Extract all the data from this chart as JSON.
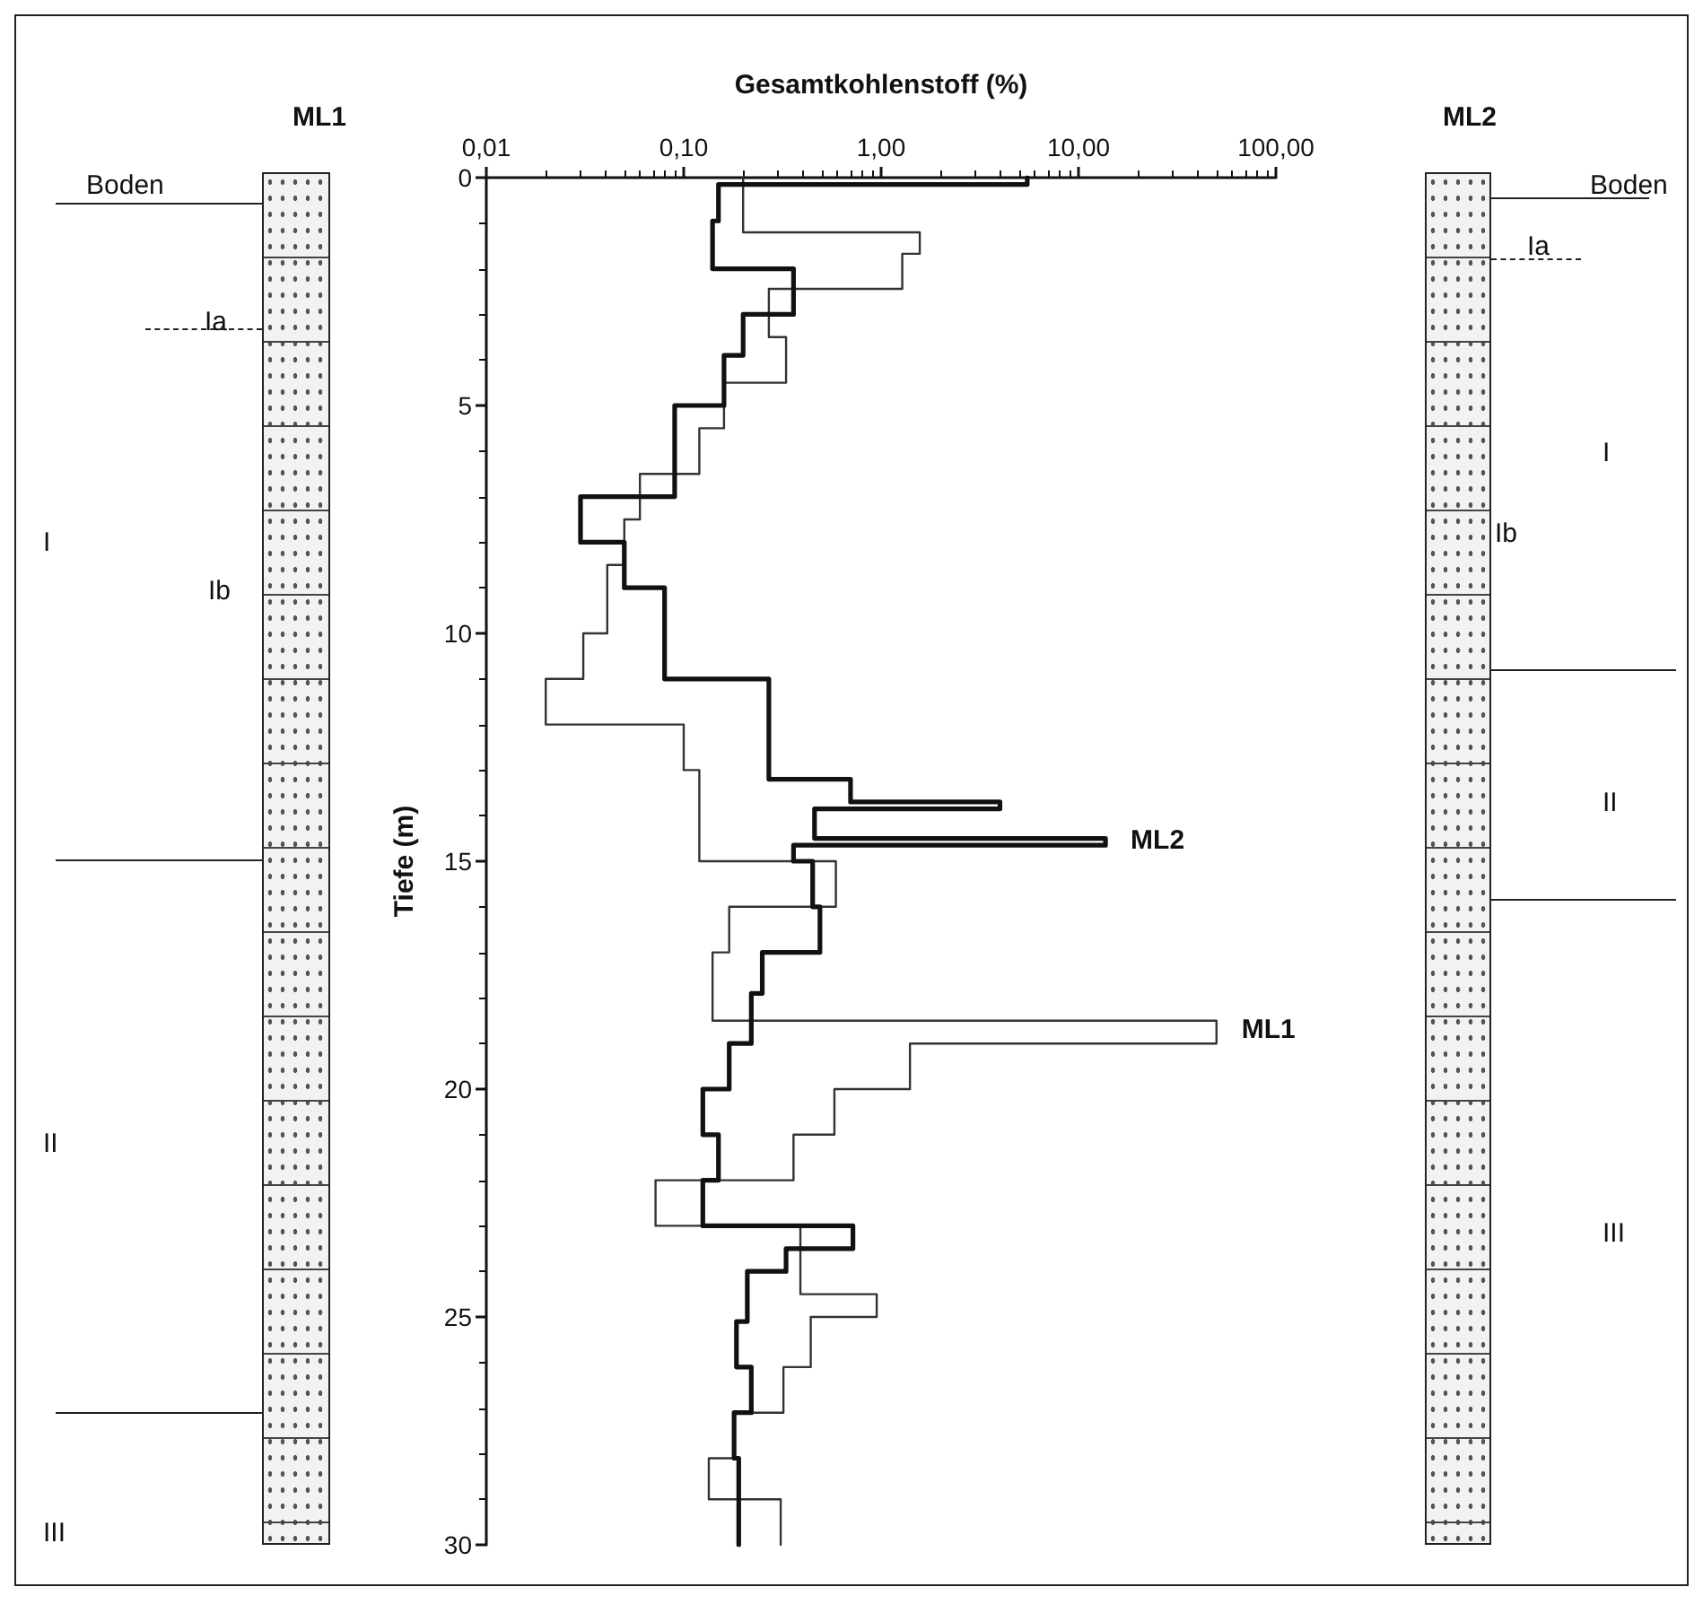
{
  "chart_data": {
    "type": "line",
    "xlabel": "Gesamtkohlenstoff (%)",
    "ylabel": "Tiefe (m)",
    "log": "x",
    "xlim": [
      0.01,
      100
    ],
    "xticks": [
      {
        "value": 0.01,
        "label": "0,01"
      },
      {
        "value": 0.1,
        "label": "0,10"
      },
      {
        "value": 1,
        "label": "1,00"
      },
      {
        "value": 10,
        "label": "10,00"
      },
      {
        "value": 100,
        "label": "100,00"
      }
    ],
    "ylim": [
      30,
      0
    ],
    "yticks": [
      0,
      5,
      10,
      15,
      20,
      25,
      30
    ],
    "grid": false,
    "marker": "none",
    "line_style": "solid",
    "series": [
      {
        "color": "#111111",
        "x": [
          5.5,
          5.5,
          0.15,
          0.15,
          0.14,
          0.14,
          0.36,
          0.36,
          0.2,
          0.2,
          0.16,
          0.16,
          0.09,
          0.09,
          0.03,
          0.03,
          0.05,
          0.05,
          0.08,
          0.08,
          0.27,
          0.27,
          0.7,
          0.7,
          4.0,
          4.0,
          0.46,
          0.46,
          13.7,
          13.7,
          0.36,
          0.36,
          0.45,
          0.45,
          0.49,
          0.49,
          0.25,
          0.25,
          0.22,
          0.22,
          0.17,
          0.17,
          0.125,
          0.125,
          0.15,
          0.15,
          0.125,
          0.125,
          0.72,
          0.72,
          0.33,
          0.33,
          0.21,
          0.21,
          0.185,
          0.185,
          0.22,
          0.22,
          0.18,
          0.18,
          0.19,
          0.19
        ],
        "values": [
          0,
          0.15,
          0.15,
          0.95,
          0.95,
          2.0,
          2.0,
          3.0,
          3.0,
          3.9,
          3.9,
          5.0,
          5.0,
          7.0,
          7.0,
          8.0,
          8.0,
          9.0,
          9.0,
          11.0,
          11.0,
          13.2,
          13.2,
          13.7,
          13.7,
          13.85,
          13.85,
          14.5,
          14.5,
          14.65,
          14.65,
          15.0,
          15.0,
          16.0,
          16.0,
          17.0,
          17.0,
          17.9,
          17.9,
          19.0,
          19.0,
          20.0,
          20.0,
          21.0,
          21.0,
          22.0,
          22.0,
          23.0,
          23.0,
          23.5,
          23.5,
          24.0,
          24.0,
          25.1,
          25.1,
          26.1,
          26.1,
          27.1,
          27.1,
          28.1,
          28.1,
          30
        ]
      },
      {
        "color": "#333333",
        "x": [
          0.2,
          0.2,
          1.57,
          1.57,
          1.28,
          1.28,
          0.27,
          0.27,
          0.33,
          0.33,
          0.16,
          0.16,
          0.12,
          0.12,
          0.06,
          0.06,
          0.05,
          0.05,
          0.041,
          0.041,
          0.031,
          0.031,
          0.02,
          0.02,
          0.1,
          0.1,
          0.12,
          0.12,
          0.59,
          0.59,
          0.17,
          0.17,
          0.14,
          0.14,
          50,
          50,
          1.4,
          1.4,
          0.58,
          0.58,
          0.36,
          0.36,
          0.072,
          0.072,
          0.39,
          0.39,
          0.95,
          0.95,
          0.44,
          0.44,
          0.32,
          0.32,
          0.18,
          0.18,
          0.134,
          0.134,
          0.31,
          0.31
        ],
        "values": [
          0,
          1.2,
          1.2,
          1.67,
          1.67,
          2.44,
          2.44,
          3.5,
          3.5,
          4.5,
          4.5,
          5.5,
          5.5,
          6.5,
          6.5,
          7.5,
          7.5,
          8.5,
          8.5,
          10.0,
          10.0,
          11.0,
          11.0,
          12.0,
          12.0,
          13.0,
          13.0,
          15.0,
          15.0,
          16.0,
          16.0,
          17.0,
          17.0,
          18.5,
          18.5,
          19.0,
          19.0,
          20.0,
          20.0,
          21.0,
          21.0,
          22.0,
          22.0,
          23.0,
          23.0,
          24.5,
          24.5,
          25.0,
          25.0,
          26.1,
          26.1,
          27.1,
          27.1,
          28.1,
          28.1,
          29.0,
          29.0,
          30
        ]
      }
    ],
    "annotations": [
      {
        "text": "ML2",
        "x": 13.7,
        "y": 14.55
      },
      {
        "text": "ML1",
        "x": 50,
        "y": 18.7
      },
      "ML1",
      "Boden",
      "Ia",
      "I",
      "Ib",
      "II",
      "III",
      "ML2",
      "Boden",
      "Ia",
      "I",
      "Ib",
      "II",
      "III"
    ]
  }
}
